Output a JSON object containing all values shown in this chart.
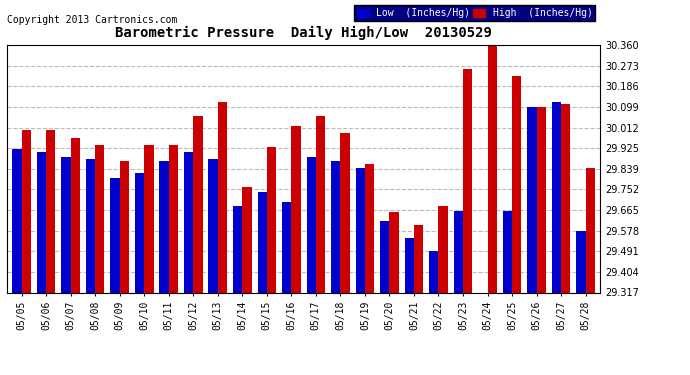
{
  "title": "Barometric Pressure  Daily High/Low  20130529",
  "copyright": "Copyright 2013 Cartronics.com",
  "legend_low": "Low  (Inches/Hg)",
  "legend_high": "High  (Inches/Hg)",
  "dates": [
    "05/05",
    "05/06",
    "05/07",
    "05/08",
    "05/09",
    "05/10",
    "05/11",
    "05/12",
    "05/13",
    "05/14",
    "05/15",
    "05/16",
    "05/17",
    "05/18",
    "05/19",
    "05/20",
    "05/21",
    "05/22",
    "05/23",
    "05/24",
    "05/25",
    "05/26",
    "05/27",
    "05/28"
  ],
  "low_values": [
    29.92,
    29.91,
    29.89,
    29.88,
    29.8,
    29.82,
    29.87,
    29.91,
    29.88,
    29.68,
    29.74,
    29.7,
    29.89,
    29.87,
    29.84,
    29.62,
    29.545,
    29.49,
    29.66,
    29.317,
    29.66,
    30.1,
    30.12,
    29.578
  ],
  "high_values": [
    30.0,
    30.0,
    29.97,
    29.94,
    29.87,
    29.94,
    29.94,
    30.06,
    30.12,
    29.76,
    29.93,
    30.02,
    30.06,
    29.99,
    29.86,
    29.655,
    29.6,
    29.68,
    30.26,
    30.36,
    30.23,
    30.1,
    30.11,
    29.84
  ],
  "ylim_min": 29.317,
  "ylim_max": 30.36,
  "yticks": [
    29.317,
    29.404,
    29.491,
    29.578,
    29.665,
    29.752,
    29.839,
    29.925,
    30.012,
    30.099,
    30.186,
    30.273,
    30.36
  ],
  "bar_width": 0.38,
  "low_color": "#0000cc",
  "high_color": "#cc0000",
  "bg_color": "#ffffff",
  "grid_color": "#aaaaaa",
  "title_fontsize": 10,
  "copyright_fontsize": 7,
  "tick_fontsize": 7
}
